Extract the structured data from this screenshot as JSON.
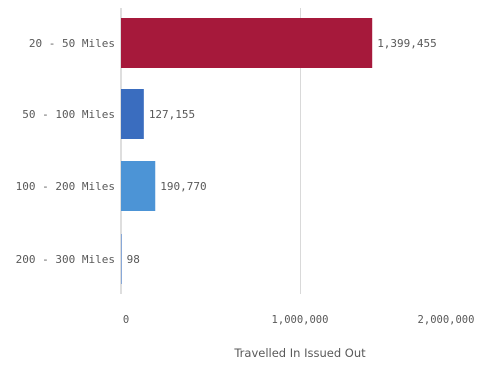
{
  "chart_data": {
    "type": "bar",
    "orientation": "horizontal",
    "categories": [
      "20 - 50 Miles",
      "50 - 100 Miles",
      "100 - 200 Miles",
      "200 - 300 Miles"
    ],
    "values": [
      1399455,
      127155,
      190770,
      98
    ],
    "value_labels": [
      "1,399,455",
      "127,155",
      "190,770",
      "98"
    ],
    "bar_colors": [
      "#A6193B",
      "#3A6DBF",
      "#4C94D6",
      "#3A6DBF"
    ],
    "xlabel": "Travelled In Issued Out",
    "ylabel": "",
    "xlim": [
      0,
      2000000
    ],
    "x_ticks": [
      0,
      1000000,
      2000000
    ],
    "x_tick_labels": [
      "0",
      "1,000,000",
      "2,000,000"
    ],
    "grid": true,
    "legend": "none"
  }
}
